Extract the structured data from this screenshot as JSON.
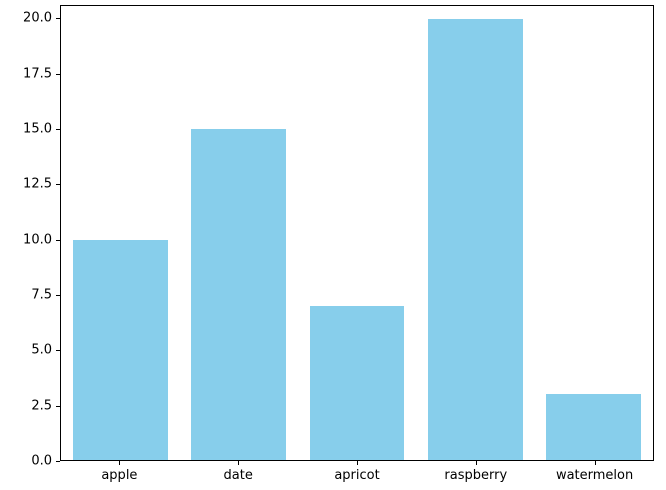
{
  "chart_data": {
    "type": "bar",
    "title": "",
    "xlabel": "",
    "ylabel": "",
    "categories": [
      "apple",
      "date",
      "apricot",
      "raspberry",
      "watermelon"
    ],
    "values": [
      10,
      15,
      7,
      20,
      3
    ],
    "yticks": [
      0.0,
      2.5,
      5.0,
      7.5,
      10.0,
      12.5,
      15.0,
      17.5,
      20.0
    ],
    "ylim": [
      0,
      20.6
    ],
    "grid": false,
    "legend": null,
    "bar_color": "#87CEEB",
    "axis_color": "#000000",
    "background_color": "#FFFFFF"
  }
}
